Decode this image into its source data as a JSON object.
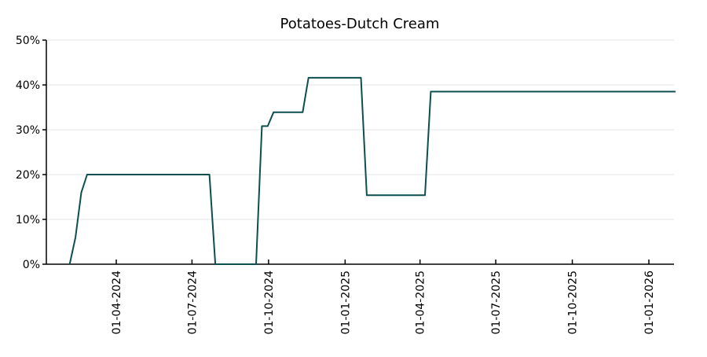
{
  "chart_data": {
    "type": "line",
    "title": "Potatoes-Dutch Cream",
    "xlabel": "",
    "ylabel": "",
    "ylim": [
      0,
      50
    ],
    "xlim": [
      "2024-01-10",
      "2026-02-02"
    ],
    "yticks": [
      0,
      10,
      20,
      30,
      40,
      50
    ],
    "ytick_labels": [
      "0%",
      "10%",
      "20%",
      "30%",
      "40%",
      "50%"
    ],
    "xticks": [
      "2024-04-01",
      "2024-07-01",
      "2024-10-01",
      "2025-01-01",
      "2025-04-01",
      "2025-07-01",
      "2025-10-01",
      "2026-01-01"
    ],
    "xtick_labels": [
      "01-04-2024",
      "01-07-2024",
      "01-10-2024",
      "01-01-2025",
      "01-04-2025",
      "01-07-2025",
      "01-10-2025",
      "01-01-2026"
    ],
    "grid": "horizontal",
    "color": "#0d4f4f",
    "series": [
      {
        "x": [
          "2024-02-05",
          "2024-02-12",
          "2024-02-19",
          "2024-02-26",
          "2024-07-22",
          "2024-07-29",
          "2024-09-16",
          "2024-09-23",
          "2024-09-30",
          "2024-10-07",
          "2024-11-11",
          "2024-11-18",
          "2025-01-20",
          "2025-01-27",
          "2025-04-07",
          "2025-04-14",
          "2026-02-02"
        ],
        "y": [
          0,
          6,
          16,
          20,
          20,
          0,
          0,
          30.8,
          30.8,
          33.9,
          33.9,
          41.6,
          41.6,
          15.4,
          15.4,
          38.5,
          38.5
        ]
      }
    ]
  }
}
